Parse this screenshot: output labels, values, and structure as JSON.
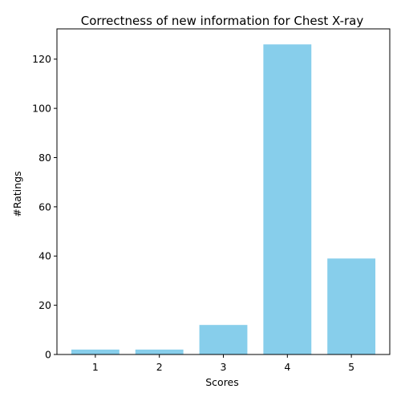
{
  "chart_data": {
    "type": "bar",
    "title": "Correctness of new information for Chest X-ray",
    "xlabel": "Scores",
    "ylabel": "#Ratings",
    "categories": [
      "1",
      "2",
      "3",
      "4",
      "5"
    ],
    "values": [
      2,
      2,
      12,
      126,
      39
    ],
    "ylim": [
      0,
      132.3
    ],
    "yticks": [
      0,
      20,
      40,
      60,
      80,
      100,
      120
    ],
    "bar_color": "#87ceeb",
    "grid": false,
    "legend": "none"
  }
}
